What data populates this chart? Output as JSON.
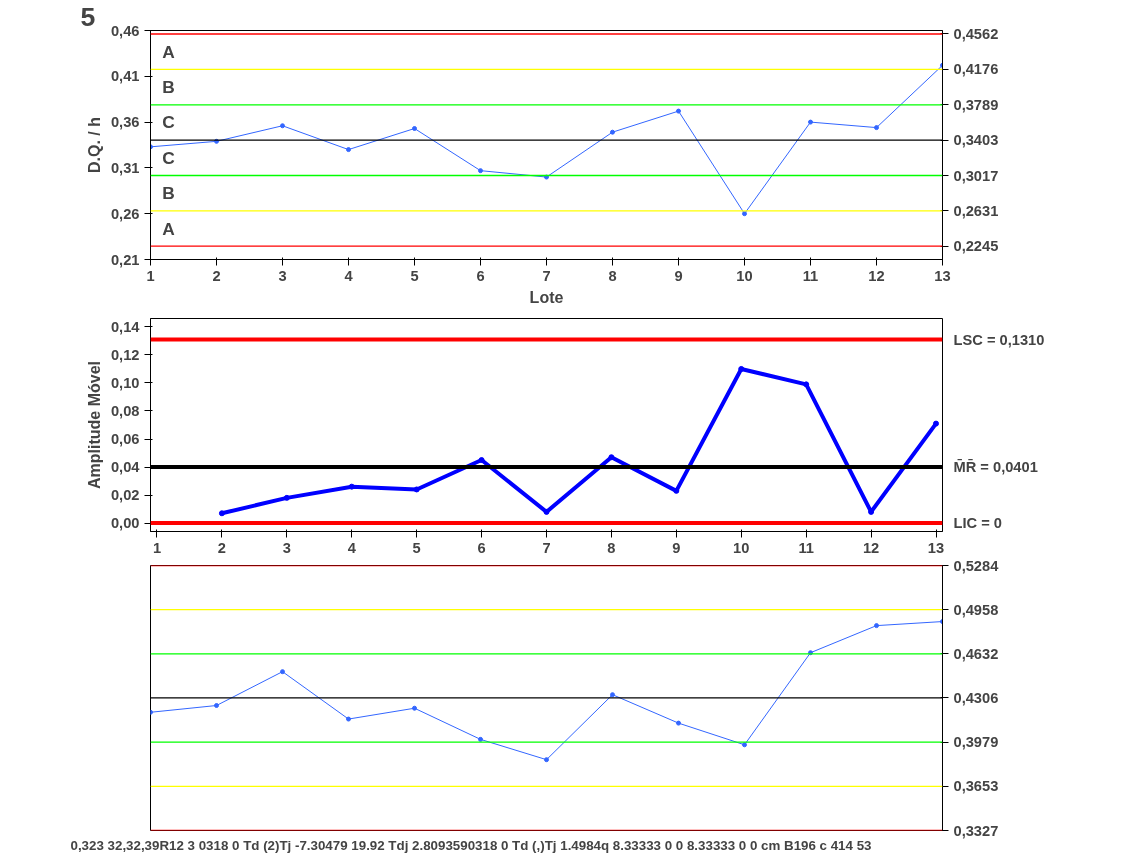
{
  "chart_data": [
    {
      "type": "line",
      "title": "5",
      "xlabel": "Lote",
      "ylabel": "D.Q. / h",
      "x": [
        1,
        2,
        3,
        4,
        5,
        6,
        7,
        8,
        9,
        10,
        11,
        12,
        13
      ],
      "series": [
        {
          "color": "#3366ff",
          "values": [
            0.333,
            0.339,
            0.356,
            0.33,
            0.353,
            0.307,
            0.3,
            0.349,
            0.372,
            0.26,
            0.36,
            0.354,
            0.422
          ]
        }
      ],
      "xlim": [
        1,
        13
      ],
      "xticks": [
        1,
        2,
        3,
        4,
        5,
        6,
        7,
        8,
        9,
        10,
        11,
        12,
        13
      ],
      "ylim": [
        0.21,
        0.46
      ],
      "yticks": [
        {
          "value": 0.21,
          "label": "0,21"
        },
        {
          "value": 0.26,
          "label": "0,26"
        },
        {
          "value": 0.31,
          "label": "0,31"
        },
        {
          "value": 0.36,
          "label": "0,36"
        },
        {
          "value": 0.41,
          "label": "0,41"
        },
        {
          "value": 0.46,
          "label": "0,46"
        }
      ],
      "y2lim": [
        0.21,
        0.46
      ],
      "y2ticks": [
        {
          "value": 0.2245,
          "label": "0,2245"
        },
        {
          "value": 0.2631,
          "label": "0,2631"
        },
        {
          "value": 0.3017,
          "label": "0,3017"
        },
        {
          "value": 0.3403,
          "label": "0,3403"
        },
        {
          "value": 0.3789,
          "label": "0,3789"
        },
        {
          "value": 0.4176,
          "label": "0,4176"
        },
        {
          "value": 0.4562,
          "label": "0,4562"
        }
      ],
      "ref_lines": [
        {
          "axis": "y",
          "value": 0.4562,
          "color": "#ff0000"
        },
        {
          "axis": "y",
          "value": 0.4176,
          "color": "#ffff00"
        },
        {
          "axis": "y",
          "value": 0.3789,
          "color": "#00ff00"
        },
        {
          "axis": "y",
          "value": 0.3403,
          "color": "#000000"
        },
        {
          "axis": "y",
          "value": 0.3017,
          "color": "#00ff00"
        },
        {
          "axis": "y",
          "value": 0.2631,
          "color": "#ffff00"
        },
        {
          "axis": "y",
          "value": 0.2245,
          "color": "#ff0000"
        }
      ],
      "annotations": [
        "A",
        "B",
        "C",
        "C",
        "B",
        "A"
      ],
      "marker": "circle",
      "grid": false
    },
    {
      "type": "line",
      "ylabel": "Amplitude Móvel",
      "x": [
        2,
        3,
        4,
        5,
        6,
        7,
        8,
        9,
        10,
        11,
        12,
        13
      ],
      "series": [
        {
          "color": "#0000ff",
          "values": [
            0.007,
            0.018,
            0.026,
            0.024,
            0.045,
            0.008,
            0.047,
            0.023,
            0.11,
            0.099,
            0.008,
            0.071
          ]
        }
      ],
      "xlim": [
        0.9,
        13.1
      ],
      "xticks": [
        1,
        2,
        3,
        4,
        5,
        6,
        7,
        8,
        9,
        10,
        11,
        12,
        13
      ],
      "ylim": [
        -0.006,
        0.146
      ],
      "yticks": [
        {
          "value": 0.0,
          "label": "0,00"
        },
        {
          "value": 0.02,
          "label": "0,02"
        },
        {
          "value": 0.04,
          "label": "0,04"
        },
        {
          "value": 0.06,
          "label": "0,06"
        },
        {
          "value": 0.08,
          "label": "0,08"
        },
        {
          "value": 0.1,
          "label": "0,10"
        },
        {
          "value": 0.12,
          "label": "0,12"
        },
        {
          "value": 0.14,
          "label": "0,14"
        }
      ],
      "ref_lines": [
        {
          "axis": "y",
          "value": 0.131,
          "label": "LSC = 0,1310",
          "color": "#ff0000"
        },
        {
          "axis": "y",
          "value": 0.0401,
          "label": "M̄R̄ = 0,0401",
          "color": "#000000"
        },
        {
          "axis": "y",
          "value": 0,
          "label": "LIC = 0",
          "color": "#ff0000"
        }
      ],
      "marker": "circle",
      "grid": false
    },
    {
      "type": "line",
      "categories": [
        null,
        null,
        null,
        null,
        null,
        null,
        null,
        null,
        null,
        null,
        null,
        null,
        null
      ],
      "series": [
        {
          "color": "#3366ff",
          "values": [
            0.42,
            0.425,
            0.45,
            0.415,
            0.423,
            0.4,
            0.385,
            0.433,
            0.412,
            0.396,
            0.464,
            0.484,
            0.487
          ]
        }
      ],
      "ylim": [
        0.3327,
        0.5284
      ],
      "yticks": [
        {
          "value": 0.3327,
          "label": "0,3327"
        },
        {
          "value": 0.3653,
          "label": "0,3653"
        },
        {
          "value": 0.3979,
          "label": "0,3979"
        },
        {
          "value": 0.4306,
          "label": "0,4306"
        },
        {
          "value": 0.4632,
          "label": "0,4632"
        },
        {
          "value": 0.4958,
          "label": "0,4958"
        },
        {
          "value": 0.5284,
          "label": "0,5284"
        }
      ],
      "ref_lines": [
        {
          "axis": "y",
          "value": 0.5284,
          "color": "#ff0000"
        },
        {
          "axis": "y",
          "value": 0.4958,
          "color": "#ffff00"
        },
        {
          "axis": "y",
          "value": 0.4632,
          "color": "#00ff00"
        },
        {
          "axis": "y",
          "value": 0.4306,
          "color": "#000000"
        },
        {
          "axis": "y",
          "value": 0.3979,
          "color": "#00ff00"
        },
        {
          "axis": "y",
          "value": 0.3653,
          "color": "#ffff00"
        },
        {
          "axis": "y",
          "value": 0.3327,
          "color": "#ff0000"
        }
      ],
      "annotations": [
        "0,323 32,32,39R12 3 0318 0 Td (2)Tj -7.30479 19.92 Tdj 2.8093590318 0 Td (,)Tj 1.4984q 8.33333 0 0 8.33333 0 0 cm B196 c 414 53"
      ],
      "marker": "circle",
      "grid": false
    }
  ]
}
